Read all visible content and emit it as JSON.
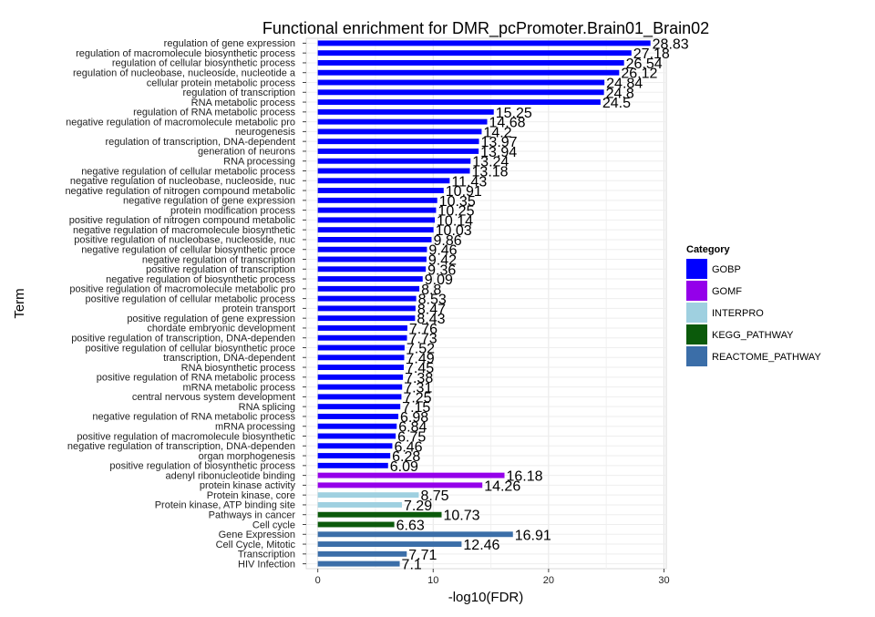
{
  "chart_data": {
    "type": "bar",
    "orientation": "horizontal",
    "title": "Functional enrichment for DMR_pcPromoter.Brain01_Brain02",
    "xlabel": "-log10(FDR)",
    "ylabel": "Term",
    "xlim": [
      -1.0,
      30.2
    ],
    "x_ticks": [
      0,
      10,
      20,
      30
    ],
    "grid": true,
    "legend": {
      "title": "Category",
      "position": "right",
      "entries": [
        {
          "name": "GOBP",
          "color": "#0000ff"
        },
        {
          "name": "GOMF",
          "color": "#9400ea"
        },
        {
          "name": "INTERPRO",
          "color": "#9fd0e0"
        },
        {
          "name": "KEGG_PATHWAY",
          "color": "#0b5a0b"
        },
        {
          "name": "REACTOME_PATHWAY",
          "color": "#3b6ea8"
        }
      ]
    },
    "bars": [
      {
        "term": "regulation of gene expression",
        "value": 28.83,
        "label": "28.83",
        "category": "GOBP"
      },
      {
        "term": "regulation of macromolecule biosynthetic process",
        "value": 27.18,
        "label": "27.18",
        "category": "GOBP"
      },
      {
        "term": "regulation of cellular biosynthetic process",
        "value": 26.54,
        "label": "26.54",
        "category": "GOBP"
      },
      {
        "term": "regulation of nucleobase, nucleoside, nucleotide a",
        "value": 26.12,
        "label": "26.12",
        "category": "GOBP"
      },
      {
        "term": "cellular protein metabolic process",
        "value": 24.84,
        "label": "24.84",
        "category": "GOBP"
      },
      {
        "term": "regulation of transcription",
        "value": 24.8,
        "label": "24.8",
        "category": "GOBP"
      },
      {
        "term": "RNA metabolic process",
        "value": 24.5,
        "label": "24.5",
        "category": "GOBP"
      },
      {
        "term": "regulation of RNA metabolic process",
        "value": 15.25,
        "label": "15.25",
        "category": "GOBP"
      },
      {
        "term": "negative regulation of macromolecule metabolic pro",
        "value": 14.68,
        "label": "14.68",
        "category": "GOBP"
      },
      {
        "term": "neurogenesis",
        "value": 14.2,
        "label": "14.2",
        "category": "GOBP"
      },
      {
        "term": "regulation of transcription, DNA-dependent",
        "value": 13.97,
        "label": "13.97",
        "category": "GOBP"
      },
      {
        "term": "generation of neurons",
        "value": 13.94,
        "label": "13.94",
        "category": "GOBP"
      },
      {
        "term": "RNA processing",
        "value": 13.24,
        "label": "13.24",
        "category": "GOBP"
      },
      {
        "term": "negative regulation of cellular metabolic process",
        "value": 13.18,
        "label": "13.18",
        "category": "GOBP"
      },
      {
        "term": "negative regulation of nucleobase, nucleoside, nuc",
        "value": 11.43,
        "label": "11.43",
        "category": "GOBP"
      },
      {
        "term": "negative regulation of nitrogen compound metabolic",
        "value": 10.91,
        "label": "10.91",
        "category": "GOBP"
      },
      {
        "term": "negative regulation of gene expression",
        "value": 10.35,
        "label": "10.35",
        "category": "GOBP"
      },
      {
        "term": "protein modification process",
        "value": 10.25,
        "label": "10.25",
        "category": "GOBP"
      },
      {
        "term": "positive regulation of nitrogen compound metabolic",
        "value": 10.14,
        "label": "10.14",
        "category": "GOBP"
      },
      {
        "term": "negative regulation of macromolecule biosynthetic",
        "value": 10.03,
        "label": "10.03",
        "category": "GOBP"
      },
      {
        "term": "positive regulation of nucleobase, nucleoside, nuc",
        "value": 9.86,
        "label": "9.86",
        "category": "GOBP"
      },
      {
        "term": "negative regulation of cellular biosynthetic proce",
        "value": 9.46,
        "label": "9.46",
        "category": "GOBP"
      },
      {
        "term": "negative regulation of transcription",
        "value": 9.42,
        "label": "9.42",
        "category": "GOBP"
      },
      {
        "term": "positive regulation of transcription",
        "value": 9.36,
        "label": "9.36",
        "category": "GOBP"
      },
      {
        "term": "negative regulation of biosynthetic process",
        "value": 9.09,
        "label": "9.09",
        "category": "GOBP"
      },
      {
        "term": "positive regulation of macromolecule metabolic pro",
        "value": 8.8,
        "label": "8.8",
        "category": "GOBP"
      },
      {
        "term": "positive regulation of cellular metabolic process",
        "value": 8.53,
        "label": "8.53",
        "category": "GOBP"
      },
      {
        "term": "protein transport",
        "value": 8.47,
        "label": "8.47",
        "category": "GOBP"
      },
      {
        "term": "positive regulation of gene expression",
        "value": 8.43,
        "label": "8.43",
        "category": "GOBP"
      },
      {
        "term": "chordate embryonic development",
        "value": 7.76,
        "label": "7.76",
        "category": "GOBP"
      },
      {
        "term": "positive regulation of transcription, DNA-dependen",
        "value": 7.73,
        "label": "7.73",
        "category": "GOBP"
      },
      {
        "term": "positive regulation of cellular biosynthetic proce",
        "value": 7.52,
        "label": "7.52",
        "category": "GOBP"
      },
      {
        "term": "transcription, DNA-dependent",
        "value": 7.49,
        "label": "7.49",
        "category": "GOBP"
      },
      {
        "term": "RNA biosynthetic process",
        "value": 7.45,
        "label": "7.45",
        "category": "GOBP"
      },
      {
        "term": "positive regulation of RNA metabolic process",
        "value": 7.38,
        "label": "7.38",
        "category": "GOBP"
      },
      {
        "term": "mRNA metabolic process",
        "value": 7.31,
        "label": "7.31",
        "category": "GOBP"
      },
      {
        "term": "central nervous system development",
        "value": 7.25,
        "label": "7.25",
        "category": "GOBP"
      },
      {
        "term": "RNA splicing",
        "value": 7.15,
        "label": "7.15",
        "category": "GOBP"
      },
      {
        "term": "negative regulation of RNA metabolic process",
        "value": 6.98,
        "label": "6.98",
        "category": "GOBP"
      },
      {
        "term": "mRNA processing",
        "value": 6.84,
        "label": "6.84",
        "category": "GOBP"
      },
      {
        "term": "positive regulation of macromolecule biosynthetic",
        "value": 6.75,
        "label": "6.75",
        "category": "GOBP"
      },
      {
        "term": "negative regulation of transcription, DNA-dependen",
        "value": 6.46,
        "label": "6.46",
        "category": "GOBP"
      },
      {
        "term": "organ morphogenesis",
        "value": 6.28,
        "label": "6.28",
        "category": "GOBP"
      },
      {
        "term": "positive regulation of biosynthetic process",
        "value": 6.09,
        "label": "6.09",
        "category": "GOBP"
      },
      {
        "term": "adenyl ribonucleotide binding",
        "value": 16.18,
        "label": "16.18",
        "category": "GOMF"
      },
      {
        "term": "protein kinase activity",
        "value": 14.26,
        "label": "14.26",
        "category": "GOMF"
      },
      {
        "term": "Protein kinase, core",
        "value": 8.75,
        "label": "8.75",
        "category": "INTERPRO"
      },
      {
        "term": "Protein kinase, ATP binding site",
        "value": 7.29,
        "label": "7.29",
        "category": "INTERPRO"
      },
      {
        "term": "Pathways in cancer",
        "value": 10.73,
        "label": "10.73",
        "category": "KEGG_PATHWAY"
      },
      {
        "term": "Cell cycle",
        "value": 6.63,
        "label": "6.63",
        "category": "KEGG_PATHWAY"
      },
      {
        "term": "Gene Expression",
        "value": 16.91,
        "label": "16.91",
        "category": "REACTOME_PATHWAY"
      },
      {
        "term": "Cell Cycle, Mitotic",
        "value": 12.46,
        "label": "12.46",
        "category": "REACTOME_PATHWAY"
      },
      {
        "term": "Transcription",
        "value": 7.71,
        "label": "7.71",
        "category": "REACTOME_PATHWAY"
      },
      {
        "term": "HIV Infection",
        "value": 7.1,
        "label": "7.1",
        "category": "REACTOME_PATHWAY"
      }
    ]
  }
}
